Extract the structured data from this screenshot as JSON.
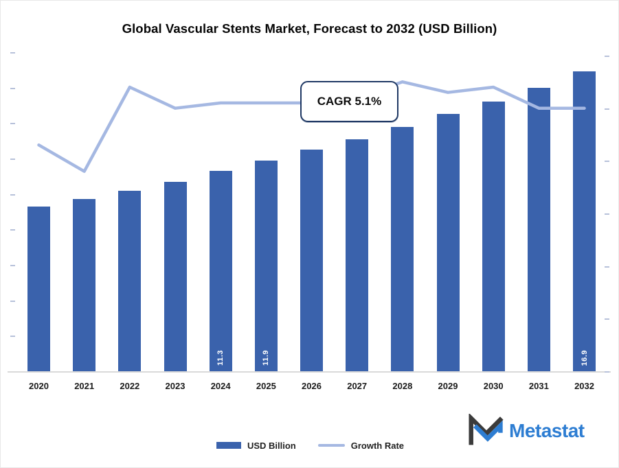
{
  "title": "Global Vascular Stents Market, Forecast to 2032 (USD Billion)",
  "annotation": {
    "cagr_label": "CAGR 5.1%"
  },
  "legend": {
    "bar_label": "USD Billion",
    "line_label": "Growth Rate"
  },
  "branding": {
    "name": "Metastat"
  },
  "colors": {
    "bar": "#3A62AC",
    "line": "#A5B8E2",
    "cagr_border": "#1F3864",
    "tick": "#b7c1da",
    "baseline": "#d9d9d9",
    "logo_blue": "#2D7DD2",
    "logo_dark": "#3B3B3B",
    "bar_label_text": "#ffffff",
    "title_text": "#060606"
  },
  "chart_data": {
    "type": "bar",
    "subtype": "bar-line-combo",
    "title": "Global Vascular Stents Market, Forecast to 2032 (USD Billion)",
    "categories": [
      "2020",
      "2021",
      "2022",
      "2023",
      "2024",
      "2025",
      "2026",
      "2027",
      "2028",
      "2029",
      "2030",
      "2031",
      "2032"
    ],
    "series": [
      {
        "name": "USD Billion",
        "type": "bar",
        "axis": "left",
        "values": [
          9.3,
          9.7,
          10.2,
          10.7,
          11.3,
          11.9,
          12.5,
          13.1,
          13.8,
          14.5,
          15.2,
          16.0,
          16.9
        ]
      },
      {
        "name": "Growth Rate",
        "type": "line",
        "axis": "right",
        "unit": "%",
        "values": [
          4.3,
          3.8,
          5.4,
          5.0,
          5.1,
          5.1,
          5.1,
          5.2,
          5.5,
          5.3,
          5.4,
          5.0,
          5.0
        ]
      }
    ],
    "data_labels": {
      "2024": "11.3",
      "2025": "11.9",
      "2032": "16.9"
    },
    "annotations": [
      "CAGR 5.1%"
    ],
    "left_axis": {
      "min": 0,
      "max": 18,
      "tick_step": 2,
      "tick_labels_hidden": true
    },
    "right_axis": {
      "min": 0,
      "max": 6,
      "tick_step": 1,
      "tick_labels_hidden": true
    },
    "grid": false,
    "legend_position": "bottom"
  }
}
